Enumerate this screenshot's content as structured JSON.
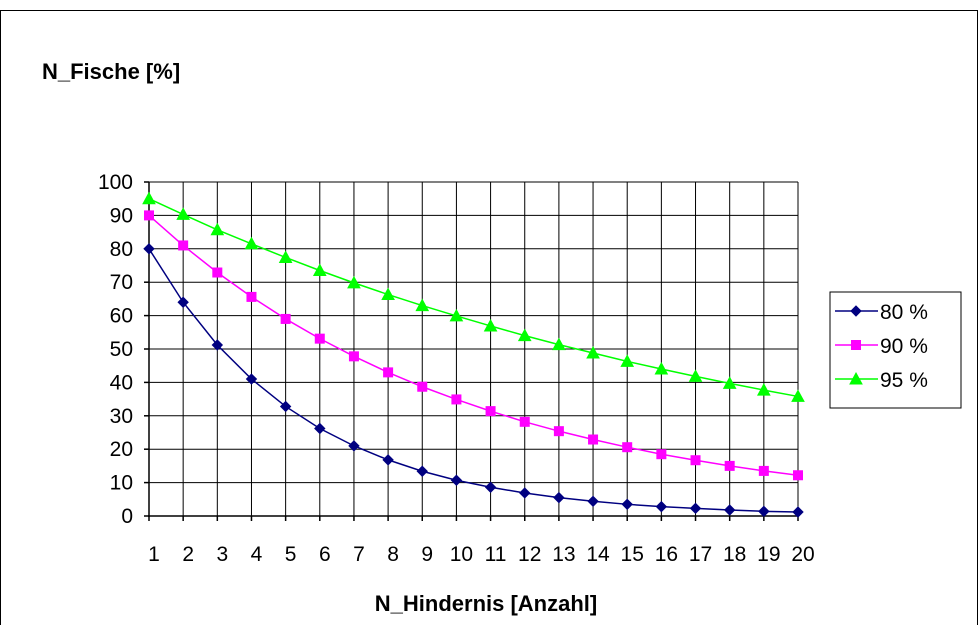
{
  "chart_data": {
    "type": "line",
    "title": "",
    "ylabel": "N_Fische [%]",
    "xlabel": "N_Hindernis [Anzahl]",
    "x": [
      1,
      2,
      3,
      4,
      5,
      6,
      7,
      8,
      9,
      10,
      11,
      12,
      13,
      14,
      15,
      16,
      17,
      18,
      19,
      20
    ],
    "xticks": [
      "1",
      "2",
      "3",
      "4",
      "5",
      "6",
      "7",
      "8",
      "9",
      "10",
      "11",
      "12",
      "13",
      "14",
      "15",
      "16",
      "17",
      "18",
      "19",
      "20"
    ],
    "ylim": [
      0,
      100
    ],
    "yticks": [
      "0",
      "10",
      "20",
      "30",
      "40",
      "50",
      "60",
      "70",
      "80",
      "90",
      "100"
    ],
    "grid": true,
    "legend_position": "right",
    "series": [
      {
        "name": "80 %",
        "color": "#000080",
        "marker": "diamond",
        "values": [
          80,
          64,
          51.2,
          41,
          32.8,
          26.2,
          21,
          16.8,
          13.4,
          10.7,
          8.6,
          6.9,
          5.5,
          4.4,
          3.5,
          2.8,
          2.3,
          1.8,
          1.4,
          1.2
        ]
      },
      {
        "name": "90 %",
        "color": "#ff00ff",
        "marker": "square",
        "values": [
          90,
          81,
          72.9,
          65.6,
          59,
          53.1,
          47.8,
          43,
          38.7,
          34.9,
          31.4,
          28.2,
          25.4,
          22.9,
          20.6,
          18.5,
          16.7,
          15,
          13.5,
          12.2
        ]
      },
      {
        "name": "95 %",
        "color": "#00ff00",
        "marker": "triangle",
        "values": [
          95,
          90.3,
          85.7,
          81.5,
          77.4,
          73.5,
          69.8,
          66.3,
          63,
          59.9,
          56.9,
          54,
          51.3,
          48.8,
          46.3,
          44,
          41.8,
          39.7,
          37.7,
          35.8
        ]
      }
    ]
  }
}
